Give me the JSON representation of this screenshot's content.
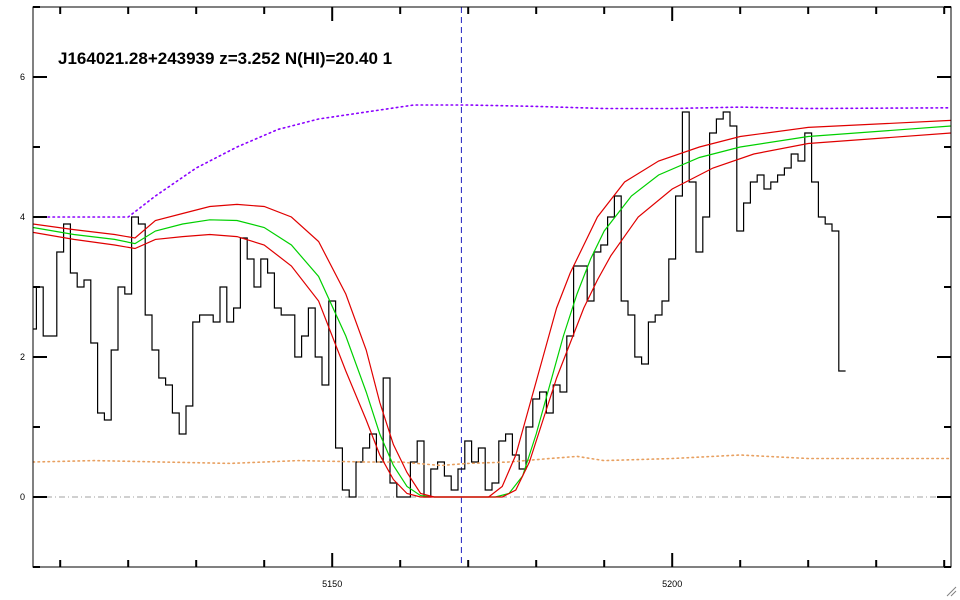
{
  "chart_data": {
    "type": "line",
    "title": "J164021.28+243939 z=3.252 N(HI)=20.40 1",
    "xlabel": "",
    "ylabel": "",
    "xlim": [
      5106,
      5241
    ],
    "ylim": [
      -1,
      7
    ],
    "x_ticks": [
      5150,
      5200
    ],
    "y_ticks": [
      0,
      2,
      4,
      6
    ],
    "grid": false,
    "legend": "none",
    "line_center_x": 5169,
    "zero_level": 0,
    "series": [
      {
        "role": "flux",
        "style": "step",
        "color": "#000000",
        "points": [
          [
            5106,
            2.4
          ],
          [
            5107,
            3.0
          ],
          [
            5108,
            2.3
          ],
          [
            5109,
            2.3
          ],
          [
            5110,
            3.5
          ],
          [
            5111,
            3.9
          ],
          [
            5112,
            3.2
          ],
          [
            5113,
            3.0
          ],
          [
            5114,
            3.1
          ],
          [
            5115,
            2.2
          ],
          [
            5116,
            1.2
          ],
          [
            5117,
            1.1
          ],
          [
            5118,
            2.1
          ],
          [
            5119,
            3.0
          ],
          [
            5120,
            2.9
          ],
          [
            5121,
            4.0
          ],
          [
            5122,
            3.9
          ],
          [
            5123,
            2.6
          ],
          [
            5124,
            2.1
          ],
          [
            5125,
            1.7
          ],
          [
            5126,
            1.6
          ],
          [
            5127,
            1.2
          ],
          [
            5128,
            0.9
          ],
          [
            5129,
            1.3
          ],
          [
            5130,
            2.5
          ],
          [
            5131,
            2.6
          ],
          [
            5132,
            2.6
          ],
          [
            5133,
            2.5
          ],
          [
            5134,
            3.0
          ],
          [
            5135,
            2.5
          ],
          [
            5136,
            2.7
          ],
          [
            5137,
            3.7
          ],
          [
            5138,
            3.4
          ],
          [
            5139,
            3.0
          ],
          [
            5140,
            3.4
          ],
          [
            5141,
            3.2
          ],
          [
            5142,
            2.7
          ],
          [
            5143,
            2.6
          ],
          [
            5144,
            2.6
          ],
          [
            5145,
            2.0
          ],
          [
            5146,
            2.3
          ],
          [
            5147,
            2.7
          ],
          [
            5148,
            2.0
          ],
          [
            5149,
            1.6
          ],
          [
            5150,
            2.8
          ],
          [
            5151,
            0.7
          ],
          [
            5152,
            0.1
          ],
          [
            5153,
            0.0
          ],
          [
            5154,
            0.5
          ],
          [
            5155,
            0.7
          ],
          [
            5156,
            0.9
          ],
          [
            5157,
            0.5
          ],
          [
            5158,
            1.7
          ],
          [
            5159,
            0.2
          ],
          [
            5160,
            0.0
          ],
          [
            5161,
            0.0
          ],
          [
            5162,
            0.5
          ],
          [
            5163,
            0.8
          ],
          [
            5164,
            0.0
          ],
          [
            5165,
            0.4
          ],
          [
            5166,
            0.5
          ],
          [
            5167,
            0.3
          ],
          [
            5168,
            0.1
          ],
          [
            5169,
            0.4
          ],
          [
            5170,
            0.8
          ],
          [
            5171,
            0.5
          ],
          [
            5172,
            0.7
          ],
          [
            5173,
            0.1
          ],
          [
            5174,
            0.2
          ],
          [
            5175,
            0.8
          ],
          [
            5176,
            0.9
          ],
          [
            5177,
            0.6
          ],
          [
            5178,
            0.4
          ],
          [
            5179,
            1.0
          ],
          [
            5180,
            1.4
          ],
          [
            5181,
            1.5
          ],
          [
            5182,
            1.2
          ],
          [
            5183,
            1.6
          ],
          [
            5184,
            1.5
          ],
          [
            5185,
            2.3
          ],
          [
            5186,
            3.3
          ],
          [
            5187,
            3.3
          ],
          [
            5188,
            2.8
          ],
          [
            5189,
            3.5
          ],
          [
            5190,
            3.6
          ],
          [
            5191,
            4.0
          ],
          [
            5192,
            4.3
          ],
          [
            5193,
            2.8
          ],
          [
            5194,
            2.6
          ],
          [
            5195,
            2.0
          ],
          [
            5196,
            1.9
          ],
          [
            5197,
            2.5
          ],
          [
            5198,
            2.6
          ],
          [
            5199,
            2.8
          ],
          [
            5200,
            3.4
          ],
          [
            5201,
            4.3
          ],
          [
            5202,
            5.5
          ],
          [
            5203,
            4.5
          ],
          [
            5204,
            3.5
          ],
          [
            5205,
            4.0
          ],
          [
            5206,
            5.2
          ],
          [
            5207,
            5.4
          ],
          [
            5208,
            5.5
          ],
          [
            5209,
            5.3
          ],
          [
            5210,
            3.8
          ],
          [
            5211,
            4.2
          ],
          [
            5212,
            4.5
          ],
          [
            5213,
            4.6
          ],
          [
            5214,
            4.4
          ],
          [
            5215,
            4.5
          ],
          [
            5216,
            4.6
          ],
          [
            5217,
            4.7
          ],
          [
            5218,
            4.9
          ],
          [
            5219,
            4.8
          ],
          [
            5220,
            5.2
          ],
          [
            5221,
            4.5
          ],
          [
            5222,
            4.0
          ],
          [
            5223,
            3.9
          ],
          [
            5224,
            3.8
          ],
          [
            5225,
            1.8
          ]
        ]
      },
      {
        "role": "continuum",
        "style": "dotted",
        "color": "#8b00ff",
        "points": [
          [
            5106,
            4.0
          ],
          [
            5114,
            4.0
          ],
          [
            5120,
            4.0
          ],
          [
            5124,
            4.3
          ],
          [
            5130,
            4.7
          ],
          [
            5136,
            5.0
          ],
          [
            5142,
            5.25
          ],
          [
            5148,
            5.4
          ],
          [
            5155,
            5.5
          ],
          [
            5162,
            5.6
          ],
          [
            5170,
            5.6
          ],
          [
            5180,
            5.58
          ],
          [
            5190,
            5.55
          ],
          [
            5200,
            5.55
          ],
          [
            5210,
            5.57
          ],
          [
            5220,
            5.55
          ],
          [
            5241,
            5.56
          ]
        ]
      },
      {
        "role": "error",
        "style": "dotted",
        "color": "#e8a060",
        "points": [
          [
            5106,
            0.5
          ],
          [
            5115,
            0.52
          ],
          [
            5125,
            0.5
          ],
          [
            5135,
            0.48
          ],
          [
            5145,
            0.52
          ],
          [
            5155,
            0.5
          ],
          [
            5160,
            0.5
          ],
          [
            5166,
            0.45
          ],
          [
            5170,
            0.48
          ],
          [
            5176,
            0.5
          ],
          [
            5182,
            0.55
          ],
          [
            5186,
            0.58
          ],
          [
            5190,
            0.52
          ],
          [
            5200,
            0.55
          ],
          [
            5210,
            0.6
          ],
          [
            5220,
            0.55
          ],
          [
            5241,
            0.55
          ]
        ]
      },
      {
        "role": "fit",
        "style": "solid",
        "color": "#00d000",
        "points": [
          [
            5106,
            3.85
          ],
          [
            5112,
            3.75
          ],
          [
            5118,
            3.68
          ],
          [
            5121,
            3.62
          ],
          [
            5124,
            3.8
          ],
          [
            5128,
            3.9
          ],
          [
            5132,
            3.96
          ],
          [
            5136,
            3.95
          ],
          [
            5140,
            3.85
          ],
          [
            5144,
            3.6
          ],
          [
            5148,
            3.15
          ],
          [
            5152,
            2.3
          ],
          [
            5155,
            1.5
          ],
          [
            5157,
            0.9
          ],
          [
            5159,
            0.45
          ],
          [
            5161,
            0.15
          ],
          [
            5163,
            0.02
          ],
          [
            5165,
            0.0
          ],
          [
            5174,
            0.0
          ],
          [
            5176,
            0.05
          ],
          [
            5178,
            0.3
          ],
          [
            5180,
            0.9
          ],
          [
            5182,
            1.6
          ],
          [
            5184,
            2.3
          ],
          [
            5186,
            2.9
          ],
          [
            5188,
            3.4
          ],
          [
            5190,
            3.8
          ],
          [
            5194,
            4.3
          ],
          [
            5198,
            4.6
          ],
          [
            5204,
            4.85
          ],
          [
            5210,
            5.0
          ],
          [
            5220,
            5.15
          ],
          [
            5241,
            5.3
          ]
        ]
      },
      {
        "role": "fit-upper",
        "style": "solid",
        "color": "#e00000",
        "points": [
          [
            5106,
            3.9
          ],
          [
            5112,
            3.82
          ],
          [
            5118,
            3.75
          ],
          [
            5121,
            3.7
          ],
          [
            5124,
            3.95
          ],
          [
            5128,
            4.05
          ],
          [
            5132,
            4.15
          ],
          [
            5136,
            4.18
          ],
          [
            5140,
            4.15
          ],
          [
            5144,
            4.0
          ],
          [
            5148,
            3.65
          ],
          [
            5152,
            2.9
          ],
          [
            5155,
            2.1
          ],
          [
            5157,
            1.35
          ],
          [
            5159,
            0.75
          ],
          [
            5161,
            0.35
          ],
          [
            5163,
            0.05
          ],
          [
            5165,
            0.0
          ],
          [
            5173,
            0.0
          ],
          [
            5175,
            0.15
          ],
          [
            5177,
            0.6
          ],
          [
            5179,
            1.3
          ],
          [
            5181,
            2.0
          ],
          [
            5183,
            2.7
          ],
          [
            5185,
            3.2
          ],
          [
            5187,
            3.6
          ],
          [
            5189,
            4.0
          ],
          [
            5193,
            4.5
          ],
          [
            5198,
            4.8
          ],
          [
            5204,
            5.0
          ],
          [
            5210,
            5.15
          ],
          [
            5220,
            5.28
          ],
          [
            5241,
            5.38
          ]
        ]
      },
      {
        "role": "fit-lower",
        "style": "solid",
        "color": "#e00000",
        "points": [
          [
            5106,
            3.78
          ],
          [
            5112,
            3.68
          ],
          [
            5118,
            3.6
          ],
          [
            5121,
            3.55
          ],
          [
            5124,
            3.68
          ],
          [
            5128,
            3.72
          ],
          [
            5132,
            3.75
          ],
          [
            5136,
            3.72
          ],
          [
            5140,
            3.6
          ],
          [
            5144,
            3.3
          ],
          [
            5148,
            2.8
          ],
          [
            5152,
            1.8
          ],
          [
            5155,
            1.1
          ],
          [
            5157,
            0.6
          ],
          [
            5159,
            0.25
          ],
          [
            5161,
            0.05
          ],
          [
            5163,
            0.0
          ],
          [
            5175,
            0.0
          ],
          [
            5177,
            0.1
          ],
          [
            5179,
            0.5
          ],
          [
            5181,
            1.1
          ],
          [
            5183,
            1.7
          ],
          [
            5185,
            2.2
          ],
          [
            5187,
            2.7
          ],
          [
            5189,
            3.1
          ],
          [
            5191,
            3.45
          ],
          [
            5195,
            4.0
          ],
          [
            5200,
            4.4
          ],
          [
            5206,
            4.7
          ],
          [
            5212,
            4.9
          ],
          [
            5220,
            5.05
          ],
          [
            5241,
            5.2
          ]
        ]
      }
    ]
  }
}
